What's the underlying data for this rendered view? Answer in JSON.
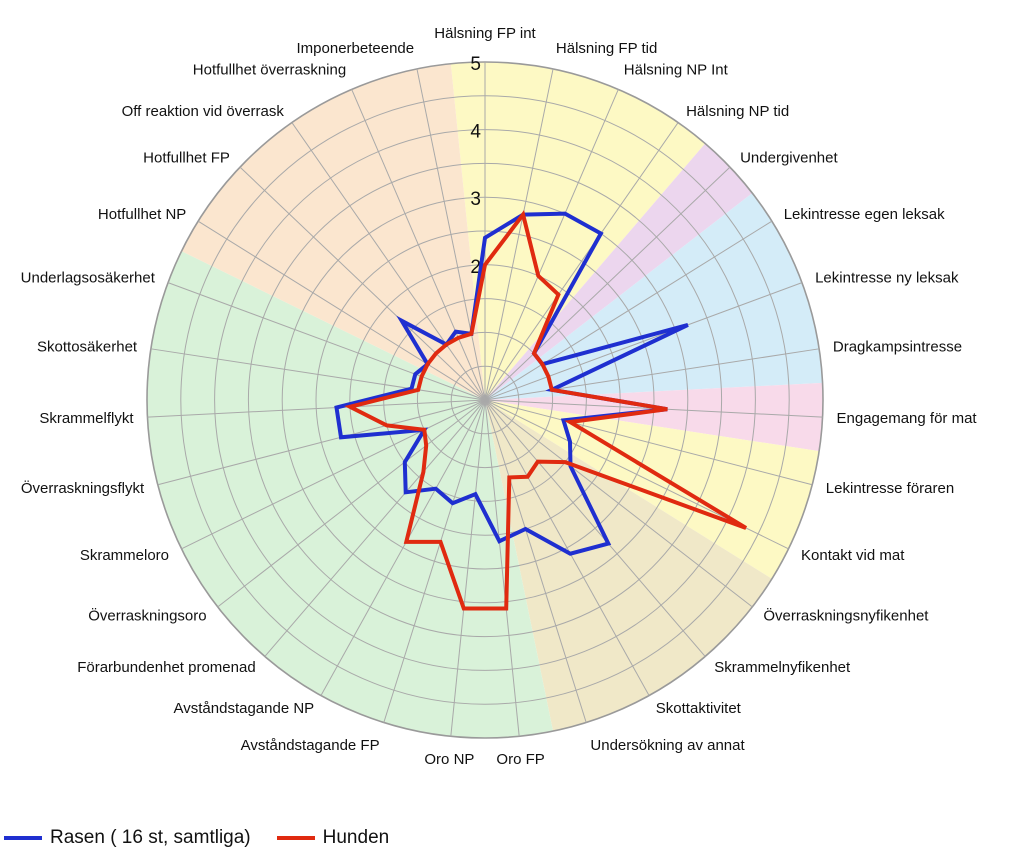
{
  "chart_data": {
    "type": "radar",
    "title": "",
    "r_range": [
      0,
      5
    ],
    "r_ticks": [
      "2",
      "3",
      "4",
      "5"
    ],
    "grid": true,
    "legend_position": "bottom-left",
    "categories": [
      "Hälsning FP int",
      "Hälsning FP tid",
      "Hälsning NP Int",
      "Hälsning NP tid",
      "Undergivenhet",
      "Lekintresse egen leksak",
      "Lekintresse ny leksak",
      "Dragkampsintresse",
      "Engagemang för mat",
      "Lekintresse föraren",
      "Kontakt vid mat",
      "Överraskningsnyfikenhet",
      "Skrammelnyfikenhet",
      "Skottaktivitet",
      "Undersökning av annat",
      "Oro FP",
      "Oro NP",
      "Avståndstagande FP",
      "Avståndstagande NP",
      "Förarbundenhet promenad",
      "Överraskningsoro",
      "Skrammeloro",
      "Överraskningsflykt",
      "Skrammelflykt",
      "Skottosäkerhet",
      "Underlagsosäkerhet",
      "Hotfullhet NP",
      "Hotfullhet FP",
      "Off reaktion vid överrask",
      "Hotfullhet överraskning",
      "Imponerbeteende"
    ],
    "series": [
      {
        "name": "Rasen ( 16 st, samtliga)",
        "color": "#1f2fd0",
        "values": [
          2.4,
          2.8,
          3.0,
          3.0,
          1.0,
          1.0,
          3.2,
          1.0,
          2.7,
          1.2,
          1.4,
          1.6,
          2.8,
          2.6,
          2.0,
          2.1,
          1.4,
          1.6,
          1.5,
          1.8,
          1.5,
          1.0,
          2.2,
          2.2,
          1.1,
          1.1,
          1.0,
          1.7,
          1.0,
          1.1,
          1.0
        ]
      },
      {
        "name": "Hunden",
        "color": "#e02a10",
        "values": [
          2.0,
          2.8,
          2.0,
          1.9,
          1.0,
          1.0,
          1.0,
          1.0,
          2.7,
          1.3,
          4.3,
          1.5,
          1.2,
          1.3,
          1.2,
          3.1,
          3.1,
          2.2,
          2.4,
          1.4,
          1.1,
          1.0,
          1.5,
          2.0,
          1.0,
          1.0,
          1.0,
          1.0,
          1.0,
          1.0,
          1.0
        ]
      }
    ],
    "sectors": [
      {
        "from": 0,
        "to": 4,
        "color": "#fdf9c4"
      },
      {
        "from": 4,
        "to": 5,
        "color": "#ecd6ee"
      },
      {
        "from": 5,
        "to": 8,
        "color": "#d4ecf8"
      },
      {
        "from": 8,
        "to": 9,
        "color": "#f8daea"
      },
      {
        "from": 9,
        "to": 11,
        "color": "#fdf9c4"
      },
      {
        "from": 11,
        "to": 15,
        "color": "#f0e8c8"
      },
      {
        "from": 15,
        "to": 26,
        "color": "#d9f2d9"
      },
      {
        "from": 26,
        "to": 31,
        "color": "#fbe6cf"
      }
    ]
  }
}
